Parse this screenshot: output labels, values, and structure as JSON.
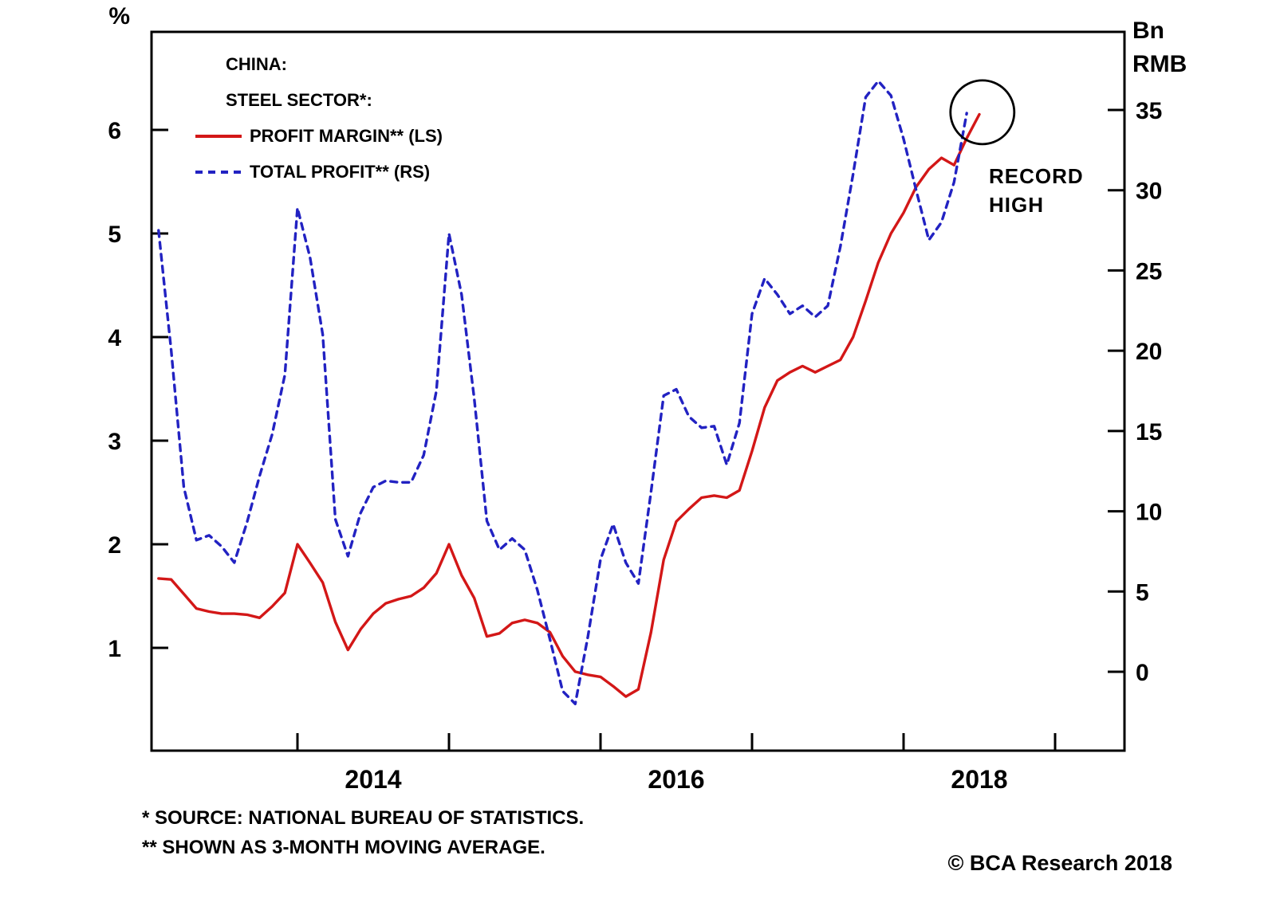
{
  "chart_data": {
    "type": "line",
    "title": "CHINA: STEEL SECTOR*",
    "title_lines": [
      "CHINA:",
      "STEEL SECTOR*:"
    ],
    "left_axis": {
      "unit": "%",
      "ticks": [
        1,
        2,
        3,
        4,
        5,
        6
      ],
      "range": [
        0,
        6.95
      ],
      "side": "left"
    },
    "right_axis": {
      "unit_lines": [
        "Bn",
        "RMB"
      ],
      "ticks": [
        0,
        5,
        10,
        15,
        20,
        25,
        30,
        35
      ],
      "range": [
        -4.95,
        39.9
      ],
      "side": "right"
    },
    "x_axis": {
      "tick_years": [
        2014,
        2015,
        2016,
        2017,
        2018,
        2019
      ],
      "year_labels": [
        2014,
        2016,
        2018
      ],
      "range": [
        2013.04,
        2019.46
      ]
    },
    "grid": "off",
    "legend_position": "top-left-inside",
    "series": [
      {
        "name": "PROFIT MARGIN** (LS)",
        "axis": "left",
        "color": "#d31717",
        "style": "solid",
        "months": [
          "2013-02",
          "2013-03",
          "2013-04",
          "2013-05",
          "2013-06",
          "2013-07",
          "2013-08",
          "2013-09",
          "2013-10",
          "2013-11",
          "2013-12",
          "2014-01",
          "2014-02",
          "2014-03",
          "2014-04",
          "2014-05",
          "2014-06",
          "2014-07",
          "2014-08",
          "2014-09",
          "2014-10",
          "2014-11",
          "2014-12",
          "2015-01",
          "2015-02",
          "2015-03",
          "2015-04",
          "2015-05",
          "2015-06",
          "2015-07",
          "2015-08",
          "2015-09",
          "2015-10",
          "2015-11",
          "2015-12",
          "2016-01",
          "2016-02",
          "2016-03",
          "2016-04",
          "2016-05",
          "2016-06",
          "2016-07",
          "2016-08",
          "2016-09",
          "2016-10",
          "2016-11",
          "2016-12",
          "2017-01",
          "2017-02",
          "2017-03",
          "2017-04",
          "2017-05",
          "2017-06",
          "2017-07",
          "2017-08",
          "2017-09",
          "2017-10",
          "2017-11",
          "2017-12",
          "2018-01",
          "2018-02",
          "2018-03",
          "2018-04",
          "2018-05",
          "2018-06",
          "2018-07"
        ],
        "values": [
          1.67,
          1.66,
          1.52,
          1.38,
          1.35,
          1.33,
          1.33,
          1.32,
          1.29,
          1.4,
          1.53,
          2.0,
          1.82,
          1.63,
          1.25,
          0.98,
          1.18,
          1.33,
          1.43,
          1.47,
          1.5,
          1.58,
          1.72,
          2.0,
          1.7,
          1.48,
          1.11,
          1.14,
          1.24,
          1.27,
          1.24,
          1.15,
          0.92,
          0.77,
          0.74,
          0.72,
          0.63,
          0.53,
          0.6,
          1.15,
          1.85,
          2.22,
          2.34,
          2.45,
          2.47,
          2.45,
          2.52,
          2.9,
          3.32,
          3.58,
          3.66,
          3.72,
          3.66,
          3.72,
          3.78,
          4.0,
          4.35,
          4.72,
          5.0,
          5.2,
          5.45,
          5.62,
          5.73,
          5.66,
          5.92,
          6.15
        ]
      },
      {
        "name": "TOTAL PROFIT** (RS)",
        "axis": "right",
        "color": "#2222c2",
        "style": "dashed",
        "months": [
          "2013-02",
          "2013-03",
          "2013-04",
          "2013-05",
          "2013-06",
          "2013-07",
          "2013-08",
          "2013-09",
          "2013-10",
          "2013-11",
          "2013-12",
          "2014-01",
          "2014-02",
          "2014-03",
          "2014-04",
          "2014-05",
          "2014-06",
          "2014-07",
          "2014-08",
          "2014-09",
          "2014-10",
          "2014-11",
          "2014-12",
          "2015-01",
          "2015-02",
          "2015-03",
          "2015-04",
          "2015-05",
          "2015-06",
          "2015-07",
          "2015-08",
          "2015-09",
          "2015-10",
          "2015-11",
          "2015-12",
          "2016-01",
          "2016-02",
          "2016-03",
          "2016-04",
          "2016-05",
          "2016-06",
          "2016-07",
          "2016-08",
          "2016-09",
          "2016-10",
          "2016-11",
          "2016-12",
          "2017-01",
          "2017-02",
          "2017-03",
          "2017-04",
          "2017-05",
          "2017-06",
          "2017-07",
          "2017-08",
          "2017-09",
          "2017-10",
          "2017-11",
          "2017-12",
          "2018-01",
          "2018-02",
          "2018-03",
          "2018-04",
          "2018-05",
          "2018-06"
        ],
        "values": [
          27.5,
          20.0,
          11.5,
          8.2,
          8.5,
          7.8,
          6.8,
          9.3,
          12.2,
          14.8,
          18.5,
          28.9,
          25.8,
          21.0,
          9.5,
          7.2,
          9.9,
          11.5,
          11.9,
          11.8,
          11.8,
          13.5,
          17.5,
          27.3,
          23.5,
          17.0,
          9.4,
          7.6,
          8.3,
          7.6,
          5.1,
          2.0,
          -1.2,
          -2.0,
          2.2,
          7.0,
          9.2,
          6.8,
          5.5,
          11.2,
          17.2,
          17.6,
          15.9,
          15.2,
          15.3,
          12.9,
          15.5,
          22.3,
          24.5,
          23.5,
          22.3,
          22.8,
          22.1,
          22.8,
          26.5,
          31.0,
          35.8,
          36.8,
          35.9,
          33.2,
          30.0,
          26.9,
          28.0,
          30.5,
          34.8
        ]
      }
    ],
    "annotation": {
      "lines": [
        "RECORD",
        "HIGH"
      ],
      "circle_center_t": 2018.52,
      "circle_center_value_left_pct": 6.17
    }
  },
  "legend": {
    "title_lines": [
      "CHINA:",
      "STEEL SECTOR*:"
    ],
    "entries": [
      {
        "label": "PROFIT MARGIN** (LS)",
        "color": "#d31717",
        "style": "solid"
      },
      {
        "label": "TOTAL PROFIT** (RS)",
        "color": "#2222c2",
        "style": "dashed"
      }
    ]
  },
  "footnotes": [
    "*  SOURCE: NATIONAL BUREAU OF STATISTICS.",
    "** SHOWN AS 3-MONTH MOVING AVERAGE."
  ],
  "copyright": "© BCA Research 2018"
}
